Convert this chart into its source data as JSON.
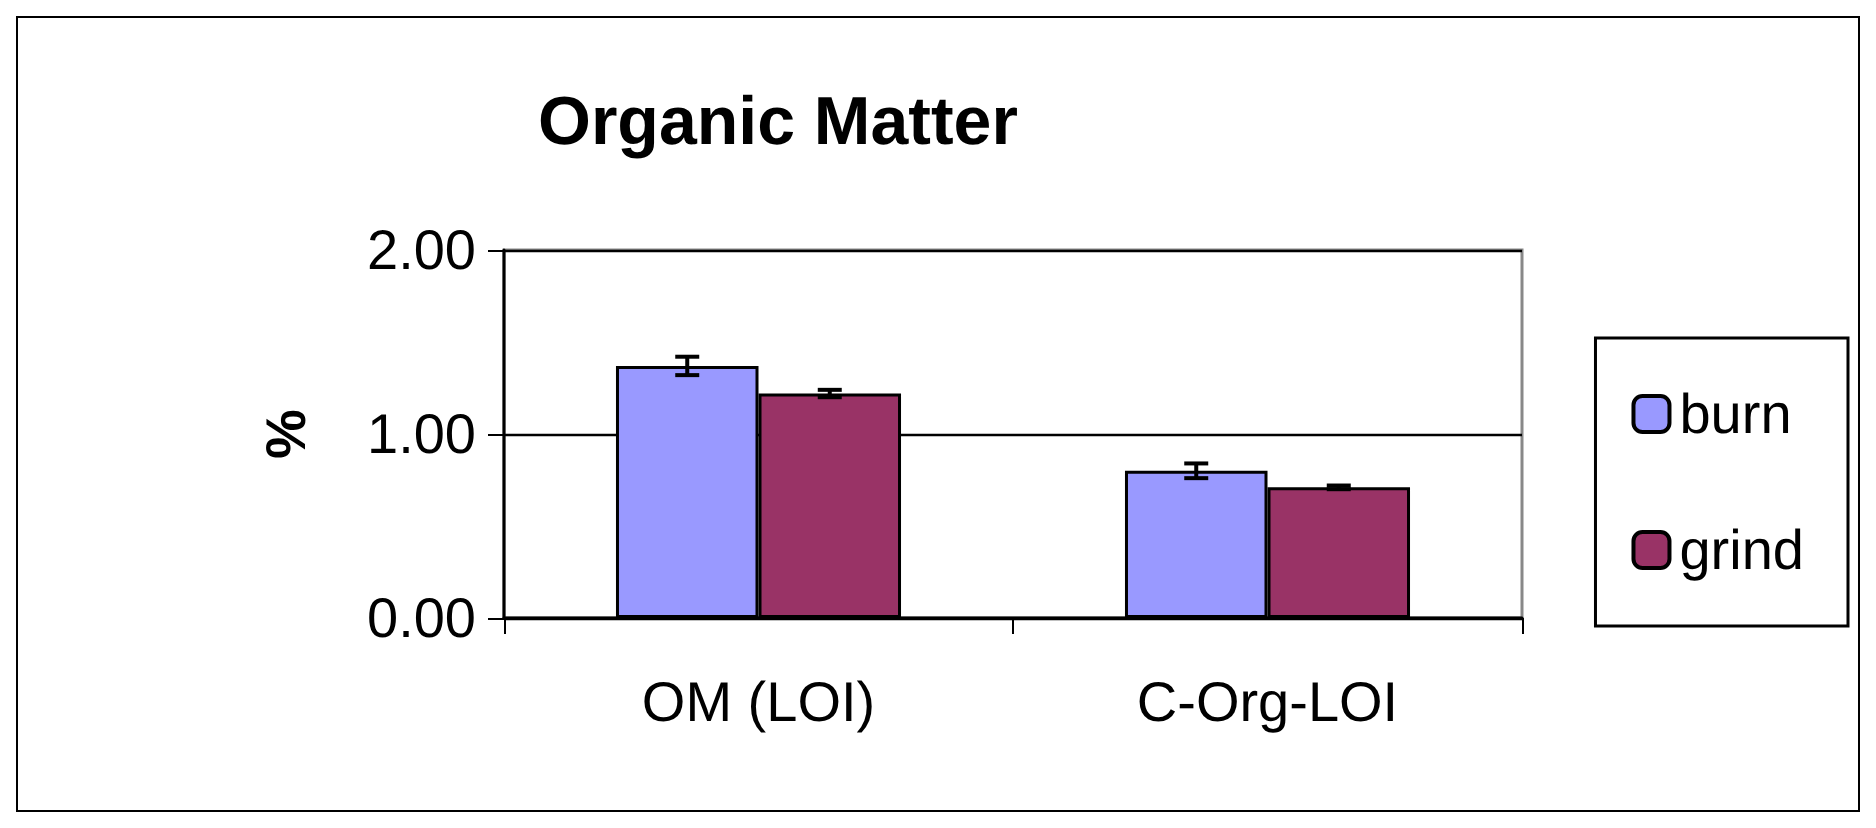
{
  "chart_data": {
    "type": "bar",
    "title": "Organic Matter",
    "ylabel": "%",
    "categories": [
      "OM (LOI)",
      "C-Org-LOI"
    ],
    "series": [
      {
        "name": "burn",
        "color": "#9999ff",
        "values": [
          1.37,
          0.8
        ],
        "errors": [
          0.05,
          0.04
        ]
      },
      {
        "name": "grind",
        "color": "#993366",
        "values": [
          1.22,
          0.71
        ],
        "errors": [
          0.02,
          0.01
        ]
      }
    ],
    "ylim": [
      0,
      2
    ],
    "yticks": [
      {
        "value": 0,
        "label": "0.00"
      },
      {
        "value": 1,
        "label": "1.00"
      },
      {
        "value": 2,
        "label": "2.00"
      }
    ],
    "grid": "y",
    "legend": "right"
  }
}
